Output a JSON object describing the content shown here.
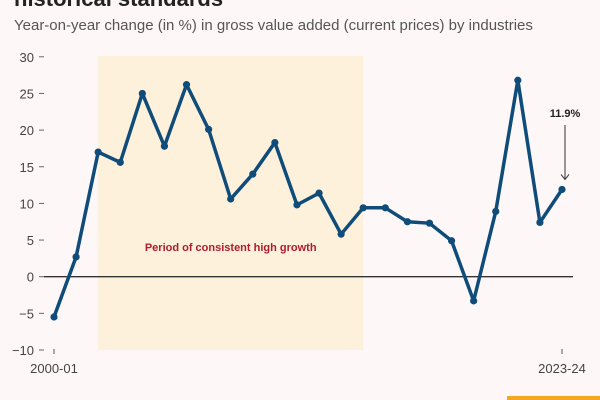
{
  "title": "historical standards",
  "subtitle": "Year-on-year change (in %) in gross value added (current prices) by industries",
  "colors": {
    "line": "#0f4c7a",
    "band": "#fdf1dc",
    "annotation": "#b01c2e",
    "background": "#fdf8f7",
    "accent_bar": "#f5a623"
  },
  "chart_data": {
    "type": "line",
    "title": "",
    "xlabel": "",
    "ylabel": "",
    "ylim": [
      -10,
      30
    ],
    "yticks": [
      "30",
      "25",
      "20",
      "15",
      "10",
      "5",
      "0",
      "-5",
      "-10"
    ],
    "xtick_labels": [
      "2000-01",
      "2023-24"
    ],
    "x": [
      "2000-01",
      "2001-02",
      "2002-03",
      "2003-04",
      "2004-05",
      "2005-06",
      "2006-07",
      "2007-08",
      "2008-09",
      "2009-10",
      "2010-11",
      "2011-12",
      "2012-13",
      "2013-14",
      "2014-15",
      "2015-16",
      "2016-17",
      "2017-18",
      "2018-19",
      "2019-20",
      "2020-21",
      "2021-22",
      "2022-23",
      "2023-24"
    ],
    "values": [
      -5.5,
      2.7,
      17.0,
      15.6,
      25.0,
      17.8,
      26.2,
      20.1,
      10.6,
      14.0,
      18.3,
      9.8,
      11.4,
      5.8,
      9.4,
      9.4,
      7.5,
      7.3,
      4.9,
      -3.3,
      8.9,
      26.8,
      7.4,
      11.9
    ],
    "shaded_region": {
      "from": "2002-03",
      "to": "2014-15",
      "label": "Period of consistent high growth"
    },
    "annotation": {
      "x": "2023-24",
      "label": "11.9%"
    },
    "grid": false
  }
}
